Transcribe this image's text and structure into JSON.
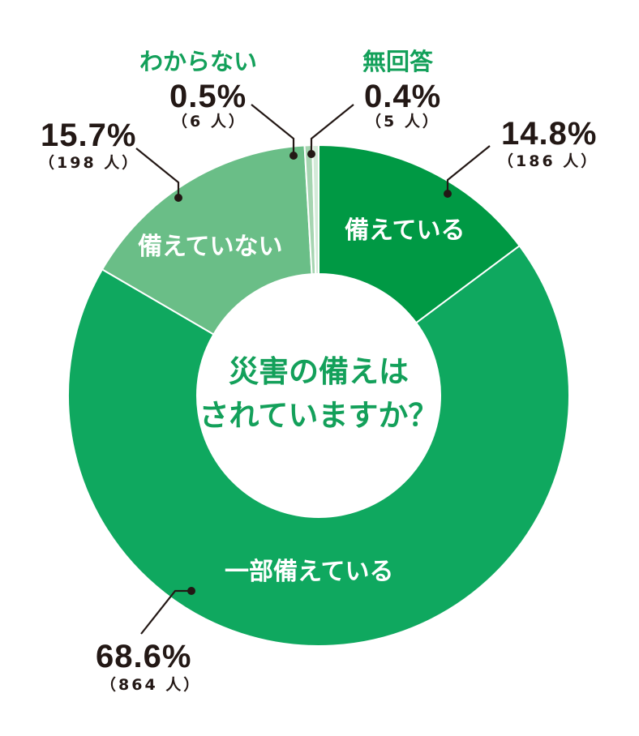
{
  "chart_data": {
    "type": "pie",
    "style": "donut",
    "title": "災害の備えはされていますか？",
    "unit": "%",
    "start_angle_deg": 0,
    "direction": "clockwise",
    "slices": [
      {
        "label": "備えている",
        "value": 14.8,
        "count": 186,
        "count_label": "（186 人）",
        "pct_label": "14.8%",
        "color": "#009944"
      },
      {
        "label": "一部備えている",
        "value": 68.6,
        "count": 864,
        "count_label": "（864 人）",
        "pct_label": "68.6%",
        "color": "#0fa85f"
      },
      {
        "label": "備えていない",
        "value": 15.7,
        "count": 198,
        "count_label": "（198 人）",
        "pct_label": "15.7%",
        "color": "#6abe87"
      },
      {
        "label": "わからない",
        "value": 0.5,
        "count": 6,
        "count_label": "（6 人）",
        "pct_label": "0.5%",
        "color": "#a6d5b1"
      },
      {
        "label": "無回答",
        "value": 0.4,
        "count": 5,
        "count_label": "（5 人）",
        "pct_label": "0.4%",
        "color": "#d3ead8"
      }
    ],
    "legend": "none (labels placed on/around slices)"
  },
  "center": {
    "line1": "災害の備えは",
    "line2": "されていますか？"
  },
  "labels": {
    "sonaeteiru": {
      "name": "備えている",
      "pct": "14.8%",
      "count": "（186 人）"
    },
    "ichibu": {
      "name": "一部備えている",
      "pct": "68.6%",
      "count": "（864 人）"
    },
    "sonaeteinai": {
      "name": "備えていない",
      "pct": "15.7%",
      "count": "（198 人）"
    },
    "wakaranai": {
      "name": "わからない",
      "pct": "0.5%",
      "count": "（6 人）"
    },
    "mukaitou": {
      "name": "無回答",
      "pct": "0.4%",
      "count": "（5 人）"
    }
  }
}
